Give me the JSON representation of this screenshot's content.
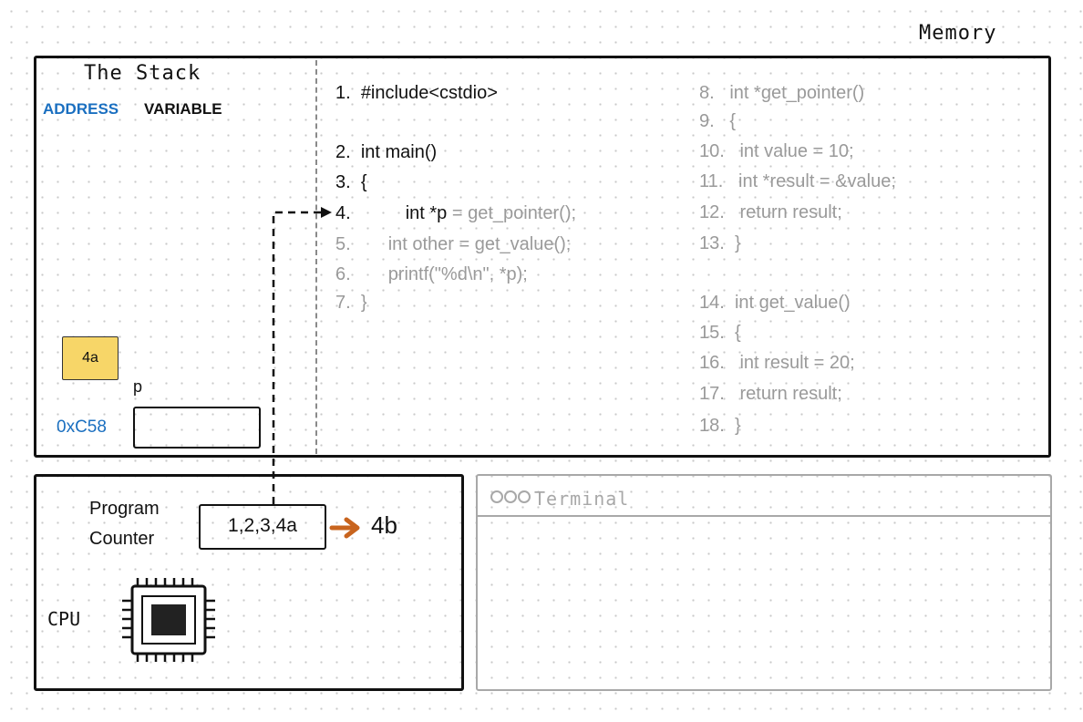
{
  "memory_title": "Memory",
  "stack": {
    "title": "The Stack",
    "col_address": "ADDRESS",
    "col_variable": "VARIABLE",
    "sticky_note": "4a",
    "variable": {
      "name": "p",
      "address": "0xC58",
      "value": ""
    }
  },
  "code": {
    "main": [
      {
        "num": "1.",
        "text": "#include<cstdio>",
        "tone": "dark"
      },
      {
        "num": "2.",
        "text": "int main()",
        "tone": "dark"
      },
      {
        "num": "3.",
        "text": "{",
        "tone": "dark"
      },
      {
        "num": "4.",
        "text": "int *p",
        "rest": " = get_pointer();",
        "tone": "current"
      },
      {
        "num": "5.",
        "text": "int other = get_value();",
        "tone": "gray"
      },
      {
        "num": "6.",
        "text": "printf(\"%d\\n\", *p);",
        "tone": "gray"
      },
      {
        "num": "7.",
        "text": "}",
        "tone": "gray"
      }
    ],
    "functions": [
      {
        "num": "8.",
        "text": "int *get_pointer()"
      },
      {
        "num": "9.",
        "text": "{"
      },
      {
        "num": "10.",
        "text": "int value = 10;"
      },
      {
        "num": "11.",
        "text": "int *result = &value;"
      },
      {
        "num": "12.",
        "text": "return result;"
      },
      {
        "num": "13.",
        "text": "}"
      },
      {
        "num": "14.",
        "text": "int get_value()"
      },
      {
        "num": "15.",
        "text": "{"
      },
      {
        "num": "16.",
        "text": "int result = 20;"
      },
      {
        "num": "17.",
        "text": "return result;"
      },
      {
        "num": "18.",
        "text": "}"
      }
    ]
  },
  "cpu": {
    "program_counter_line1": "Program",
    "program_counter_line2": "Counter",
    "program_counter_value": "1,2,3,4a",
    "next_step": "4b",
    "cpu_label": "CPU",
    "chip_icon": "cpu-chip-icon"
  },
  "terminal": {
    "title": "Terminal",
    "output": ""
  },
  "colors": {
    "address_blue": "#1a6fc0",
    "sticky_yellow": "#f7d668",
    "arrow_orange": "#c8641e",
    "inactive_gray": "#9a9a9a"
  }
}
